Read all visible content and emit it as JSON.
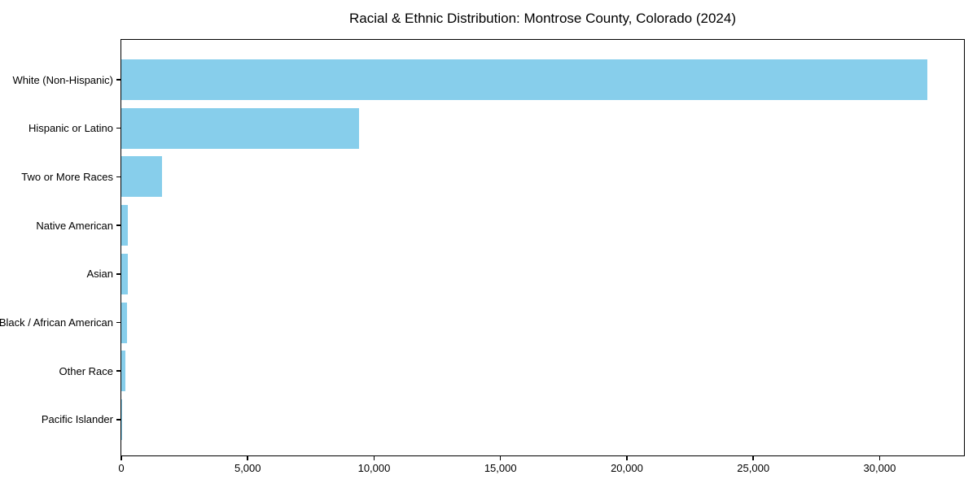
{
  "title": "Racial & Ethnic Distribution: Montrose County, Colorado (2024)",
  "colors": {
    "bar": "#87CEEB",
    "axis": "#000000",
    "text": "#000000",
    "background": "#FFFFFF"
  },
  "chart_data": {
    "type": "bar",
    "orientation": "horizontal",
    "title": "Racial & Ethnic Distribution: Montrose County, Colorado (2024)",
    "categories": [
      "White (Non-Hispanic)",
      "Hispanic or Latino",
      "Two or More Races",
      "Native American",
      "Asian",
      "Black / African American",
      "Other Race",
      "Pacific Islander"
    ],
    "values": [
      31900,
      9400,
      1600,
      260,
      250,
      210,
      170,
      20
    ],
    "xlabel": "",
    "ylabel": "",
    "xlim": [
      0,
      33400
    ],
    "x_ticks": [
      0,
      5000,
      10000,
      15000,
      20000,
      25000,
      30000
    ],
    "x_tick_labels": [
      "0",
      "5,000",
      "10,000",
      "15,000",
      "20,000",
      "25,000",
      "30,000"
    ],
    "grid": false,
    "legend": "none",
    "bar_color": "#87CEEB"
  }
}
